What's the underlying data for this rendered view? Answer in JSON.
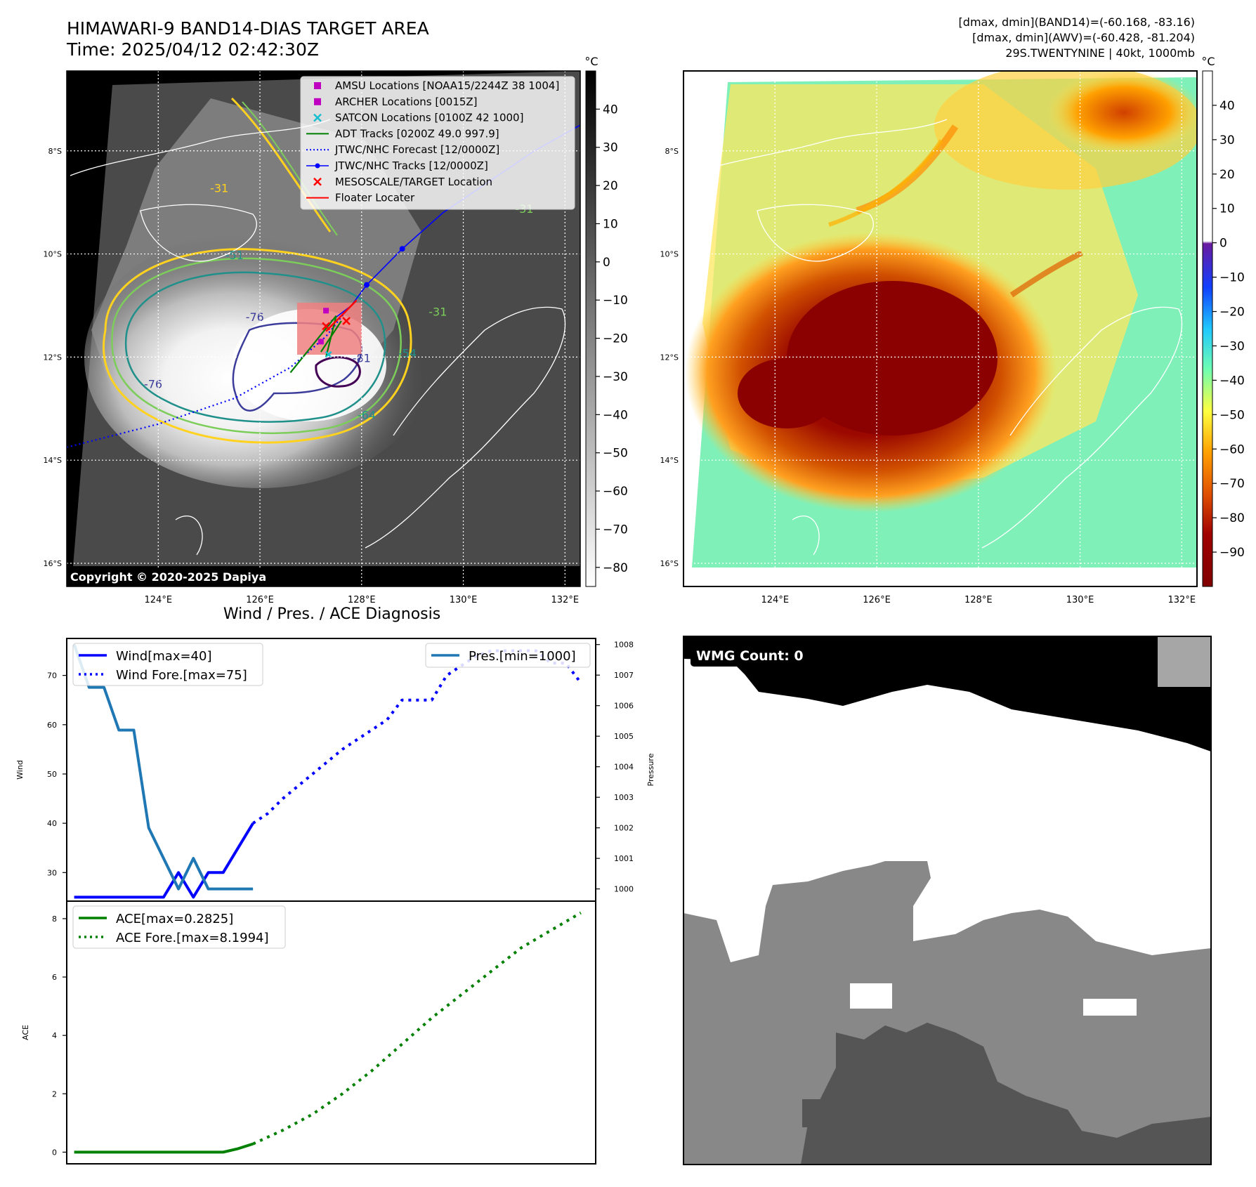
{
  "header": {
    "title_line1": "HIMAWARI-9 BAND14-DIAS TARGET AREA",
    "title_line2": "Time: 2025/04/12 02:42:30Z",
    "info_line1": "[dmax, dmin](BAND14)=(-60.168, -83.16)",
    "info_line2": "[dmax, dmin](AWV)=(-60.428, -81.204)",
    "info_line3": "29S.TWENTYNINE | 40kt, 1000mb"
  },
  "map_axes": {
    "lon_labels": [
      "124°E",
      "126°E",
      "128°E",
      "130°E",
      "132°E"
    ],
    "lon_values": [
      124,
      126,
      128,
      130,
      132
    ],
    "lat_labels": [
      "8°S",
      "10°S",
      "12°S",
      "14°S",
      "16°S"
    ],
    "lat_values": [
      -8,
      -10,
      -12,
      -14,
      -16
    ],
    "lon_range": [
      122.2,
      132.3
    ],
    "lat_range": [
      -16.45,
      -6.45
    ]
  },
  "ir_panel": {
    "copyright": "Copyright © 2020-2025 Dapiya",
    "legend": [
      {
        "marker": "square",
        "color": "#c000c0",
        "label": "AMSU Locations [NOAA15/2244Z 38 1004]"
      },
      {
        "marker": "square",
        "color": "#c000c0",
        "label": "ARCHER Locations [0015Z]"
      },
      {
        "marker": "x",
        "color": "#17becf",
        "label": "SATCON Locations [0100Z 42 1000]"
      },
      {
        "marker": "line",
        "color": "#008000",
        "label": "ADT Tracks [0200Z 49.0 997.9]"
      },
      {
        "marker": "dotted",
        "color": "#0000ff",
        "label": "JTWC/NHC Forecast [12/0000Z]"
      },
      {
        "marker": "linedot",
        "color": "#0000ff",
        "label": "JTWC/NHC Tracks [12/0000Z]"
      },
      {
        "marker": "x",
        "color": "#ff0000",
        "label": "MESOSCALE/TARGET Location"
      },
      {
        "marker": "line",
        "color": "#ff0000",
        "label": "Floater Locater"
      }
    ],
    "contour_labels": [
      "-31",
      "-31",
      "-51",
      "-76",
      "-76",
      "-81",
      "-64",
      "-54",
      "-31"
    ]
  },
  "colorbar_gray": {
    "unit": "°C",
    "ticks": [
      "40",
      "30",
      "20",
      "10",
      "0",
      "−10",
      "−20",
      "−30",
      "−40",
      "−50",
      "−60",
      "−70",
      "−80"
    ],
    "values": [
      40,
      30,
      20,
      10,
      0,
      -10,
      -20,
      -30,
      -40,
      -50,
      -60,
      -70,
      -80
    ],
    "range": [
      -85,
      50
    ]
  },
  "colorbar_color": {
    "unit": "°C",
    "ticks": [
      "40",
      "30",
      "20",
      "10",
      "0",
      "−10",
      "−20",
      "−30",
      "−40",
      "−50",
      "−60",
      "−70",
      "−80",
      "−90"
    ],
    "values": [
      40,
      30,
      20,
      10,
      0,
      -10,
      -20,
      -30,
      -40,
      -50,
      -60,
      -70,
      -80,
      -90
    ],
    "range": [
      -100,
      50
    ]
  },
  "wmg_panel": {
    "label": "WMG Count: 0"
  },
  "chart_data": [
    {
      "type": "line",
      "title": "Wind / Pres. / ACE Diagnosis",
      "ylabel": "Wind",
      "ylabel_right": "Pressure",
      "ylim": [
        24.2,
        77.5
      ],
      "ylim_right": [
        999.6,
        1008.2
      ],
      "yticks": [
        30,
        40,
        50,
        60,
        70
      ],
      "yticks_right": [
        1000,
        1001,
        1002,
        1003,
        1004,
        1005,
        1006,
        1007,
        1008
      ],
      "series": [
        {
          "name": "Wind[max=40]",
          "color": "#0000ff",
          "style": "solid",
          "axis": "left",
          "x": [
            0,
            1,
            2,
            3,
            4,
            5,
            6,
            7,
            8,
            9,
            10,
            11,
            12
          ],
          "values": [
            25,
            25,
            25,
            25,
            25,
            25,
            25,
            30,
            25,
            30,
            30,
            35,
            40
          ]
        },
        {
          "name": "Wind Fore.[max=75]",
          "color": "#0000ff",
          "style": "dotted",
          "axis": "left",
          "x": [
            12,
            13,
            14,
            15,
            16,
            17,
            18,
            19,
            20,
            21,
            22,
            23,
            24,
            25,
            26,
            27,
            28,
            29,
            30,
            31,
            32,
            33,
            34
          ],
          "values": [
            40,
            42,
            45,
            47.5,
            50,
            52.5,
            55,
            57,
            59,
            61,
            65,
            65,
            65,
            70,
            72,
            74,
            75,
            75,
            75,
            75,
            72.5,
            72.5,
            68.5
          ]
        },
        {
          "name": "Pres.[min=1000]",
          "color": "#1f77b4",
          "style": "solid",
          "axis": "right",
          "x": [
            0,
            1,
            2,
            3,
            4,
            5,
            6,
            7,
            8,
            9,
            10,
            11,
            12
          ],
          "values": [
            1008,
            1006.6,
            1006.6,
            1005.2,
            1005.2,
            1002,
            1001,
            1000,
            1001,
            1000,
            1000,
            1000,
            1000
          ]
        }
      ],
      "xlim": [
        -0.5,
        35
      ]
    },
    {
      "type": "line",
      "ylabel": "ACE",
      "ylim": [
        -0.4,
        8.6
      ],
      "yticks": [
        0,
        2,
        4,
        6,
        8
      ],
      "series": [
        {
          "name": "ACE[max=0.2825]",
          "color": "#008000",
          "style": "solid",
          "x": [
            0,
            2,
            4,
            6,
            8,
            10,
            11,
            12
          ],
          "values": [
            0,
            0,
            0,
            0,
            0,
            0,
            0.12,
            0.2825
          ]
        },
        {
          "name": "ACE Fore.[max=8.1994]",
          "color": "#008000",
          "style": "dotted",
          "x": [
            12,
            14,
            16,
            18,
            20,
            22,
            24,
            26,
            28,
            30,
            32,
            34
          ],
          "values": [
            0.2825,
            0.75,
            1.3,
            2.0,
            2.8,
            3.7,
            4.6,
            5.4,
            6.2,
            7.0,
            7.6,
            8.1994
          ]
        }
      ],
      "xlim": [
        -0.5,
        35
      ]
    }
  ]
}
